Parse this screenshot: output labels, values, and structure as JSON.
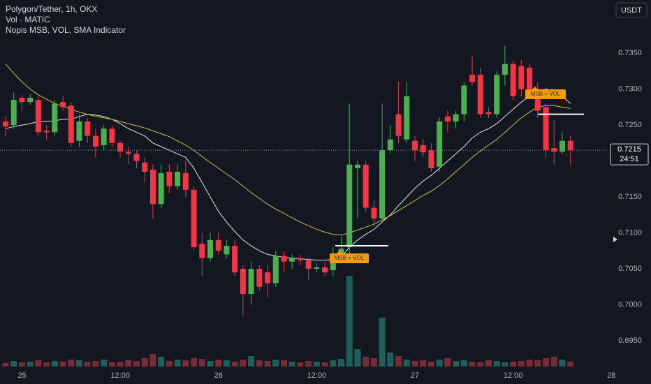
{
  "chart_data": {
    "type": "candlestick",
    "title": "Polygon/Tether, 1h, OKX",
    "subtitles": [
      "Vol · MATIC",
      "Nopis MSB, VOL, SMA Indicator"
    ],
    "currency": "USDT",
    "categories": [
      null,
      null,
      "25",
      null,
      null,
      null,
      null,
      null,
      null,
      null,
      null,
      null,
      null,
      null,
      "12:00",
      null,
      null,
      null,
      null,
      null,
      null,
      null,
      null,
      null,
      null,
      null,
      "26",
      null,
      null,
      null,
      null,
      null,
      null,
      null,
      null,
      null,
      null,
      null,
      "12:00",
      null,
      null,
      null,
      null,
      null,
      null,
      null,
      null,
      null,
      null,
      null,
      "27",
      null,
      null,
      null,
      null,
      null,
      null,
      null,
      null,
      null,
      null,
      null,
      "12:00",
      null,
      null,
      null,
      null,
      null,
      null,
      null,
      null,
      null,
      null,
      null,
      "28"
    ],
    "open": [
      0.7255,
      0.725,
      0.7288,
      0.7282,
      0.7285,
      0.7242,
      0.724,
      0.7282,
      0.7277,
      0.7228,
      0.7255,
      0.7235,
      0.7222,
      0.7245,
      0.7225,
      0.7213,
      0.721,
      0.7198,
      0.7188,
      0.714,
      0.7185,
      0.7165,
      0.7183,
      0.716,
      0.7085,
      0.7065,
      0.709,
      0.707,
      0.7082,
      0.705,
      0.7015,
      0.705,
      0.7045,
      0.703,
      0.7068,
      0.706,
      0.7065,
      0.7062,
      0.705,
      0.7052,
      0.7048,
      0.707,
      0.708,
      0.719,
      0.7195,
      0.7135,
      0.712,
      0.7215,
      0.7265,
      0.723,
      0.7228,
      0.7222,
      0.7215,
      0.7192,
      0.7262,
      0.7255,
      0.7265,
      0.732,
      0.732,
      0.7268,
      0.7265,
      0.732,
      0.7335,
      0.7332,
      0.733,
      0.73,
      0.7275,
      0.7218,
      0.7213,
      0.7228,
      null,
      null,
      null,
      null,
      null
    ],
    "high": [
      0.7262,
      0.7295,
      0.7292,
      0.7293,
      0.729,
      0.725,
      0.7285,
      0.729,
      0.7282,
      0.7265,
      0.726,
      0.7245,
      0.725,
      0.725,
      0.7228,
      0.722,
      0.7215,
      0.7205,
      0.7195,
      0.7195,
      0.7195,
      0.7195,
      0.72,
      0.7165,
      0.71,
      0.71,
      0.71,
      0.709,
      0.709,
      0.7055,
      0.706,
      0.7055,
      0.7055,
      0.7075,
      0.7075,
      0.707,
      0.707,
      0.7065,
      0.7058,
      0.706,
      0.708,
      0.7095,
      0.728,
      0.72,
      0.72,
      0.7145,
      0.728,
      0.725,
      0.731,
      0.731,
      0.7235,
      0.723,
      0.7225,
      0.726,
      0.727,
      0.727,
      0.731,
      0.7345,
      0.733,
      0.7275,
      0.7325,
      0.736,
      0.734,
      0.734,
      0.7335,
      0.731,
      0.728,
      0.7258,
      0.724,
      0.7235,
      null,
      null,
      null,
      null,
      null
    ],
    "low": [
      0.7235,
      0.7245,
      0.727,
      0.7278,
      0.7235,
      0.723,
      0.7235,
      0.727,
      0.722,
      0.722,
      0.7225,
      0.7205,
      0.7215,
      0.722,
      0.7205,
      0.7195,
      0.719,
      0.717,
      0.712,
      0.7135,
      0.7155,
      0.716,
      0.715,
      0.7075,
      0.704,
      0.706,
      0.707,
      0.7065,
      0.704,
      0.6985,
      0.7,
      0.702,
      0.701,
      0.7025,
      0.7045,
      0.705,
      0.7055,
      0.7035,
      0.7045,
      0.704,
      0.704,
      0.706,
      0.707,
      0.712,
      0.713,
      0.711,
      0.7115,
      0.721,
      0.7225,
      0.7225,
      0.72,
      0.7205,
      0.7185,
      0.7185,
      0.724,
      0.7245,
      0.7255,
      0.7305,
      0.726,
      0.726,
      0.726,
      0.7305,
      0.7285,
      0.729,
      0.7295,
      0.726,
      0.7205,
      0.7195,
      0.721,
      0.7195,
      null,
      null,
      null,
      null,
      null
    ],
    "close": [
      0.7248,
      0.7285,
      0.7282,
      0.7288,
      0.724,
      0.724,
      0.728,
      0.7275,
      0.7225,
      0.7255,
      0.7235,
      0.722,
      0.7245,
      0.7225,
      0.7213,
      0.721,
      0.72,
      0.7185,
      0.714,
      0.7183,
      0.7165,
      0.7185,
      0.716,
      0.708,
      0.7065,
      0.709,
      0.7075,
      0.7082,
      0.7045,
      0.7015,
      0.705,
      0.7025,
      0.703,
      0.7068,
      0.706,
      0.7065,
      0.7062,
      0.705,
      0.7052,
      0.7045,
      0.707,
      0.7078,
      0.7195,
      0.7195,
      0.7135,
      0.712,
      0.7215,
      0.723,
      0.7235,
      0.729,
      0.7215,
      0.7212,
      0.719,
      0.7255,
      0.7255,
      0.7265,
      0.7305,
      0.731,
      0.7265,
      0.7265,
      0.732,
      0.7335,
      0.729,
      0.73,
      0.73,
      0.727,
      0.7215,
      0.7213,
      0.7228,
      0.7215,
      null,
      null,
      null,
      null,
      null
    ],
    "up_color": "#4caf50",
    "down_color": "#f23645",
    "volume": {
      "up_color": "#1e5f59",
      "down_color": "#7a2c36",
      "vlim": [
        0,
        140
      ],
      "values": [
        5,
        8,
        6,
        7,
        9,
        6,
        8,
        7,
        10,
        9,
        7,
        8,
        10,
        6,
        7,
        9,
        8,
        12,
        18,
        14,
        8,
        10,
        9,
        12,
        11,
        8,
        10,
        9,
        7,
        10,
        15,
        9,
        8,
        10,
        9,
        7,
        6,
        8,
        7,
        6,
        9,
        11,
        130,
        25,
        14,
        12,
        70,
        20,
        15,
        10,
        8,
        9,
        7,
        10,
        12,
        8,
        9,
        7,
        6,
        9,
        8,
        6,
        7,
        8,
        10,
        9,
        12,
        14,
        10,
        7,
        null,
        null,
        null,
        null,
        null
      ]
    },
    "sma": [
      {
        "color": "#e6e6e6",
        "values": [
          0.7245,
          0.7248,
          0.725,
          0.7252,
          0.7255,
          0.7255,
          0.7256,
          0.7258,
          0.7258,
          0.7262,
          0.7265,
          0.7264,
          0.7262,
          0.7258,
          0.7252,
          0.7245,
          0.724,
          0.7235,
          0.7225,
          0.722,
          0.7215,
          0.721,
          0.7205,
          0.719,
          0.717,
          0.715,
          0.713,
          0.7115,
          0.7102,
          0.709,
          0.7082,
          0.7075,
          0.707,
          0.7068,
          0.7066,
          0.7065,
          0.7064,
          0.7063,
          0.7062,
          0.7062,
          0.7063,
          0.7066,
          0.708,
          0.709,
          0.7098,
          0.7105,
          0.7115,
          0.7125,
          0.7138,
          0.715,
          0.7162,
          0.7172,
          0.718,
          0.719,
          0.72,
          0.721,
          0.722,
          0.7232,
          0.724,
          0.7245,
          0.7252,
          0.7262,
          0.7272,
          0.7282,
          0.729,
          0.7298,
          0.73,
          0.7298,
          0.729,
          0.728,
          null,
          null,
          null,
          null,
          null
        ]
      },
      {
        "color": "#d4c22a",
        "values": [
          0.7335,
          0.7322,
          0.731,
          0.73,
          0.7292,
          0.7286,
          0.728,
          0.7276,
          0.7272,
          0.7268,
          0.7265,
          0.7262,
          0.726,
          0.7258,
          0.7255,
          0.7252,
          0.7249,
          0.7246,
          0.7242,
          0.7238,
          0.7234,
          0.7228,
          0.7222,
          0.7215,
          0.7206,
          0.7198,
          0.719,
          0.7182,
          0.7174,
          0.7165,
          0.7156,
          0.7148,
          0.714,
          0.7133,
          0.7127,
          0.7121,
          0.7115,
          0.711,
          0.7105,
          0.7101,
          0.7098,
          0.7097,
          0.71,
          0.7104,
          0.7108,
          0.7112,
          0.7118,
          0.7124,
          0.7131,
          0.7138,
          0.7145,
          0.7152,
          0.7158,
          0.7166,
          0.7175,
          0.7185,
          0.7195,
          0.7205,
          0.7214,
          0.7222,
          0.723,
          0.724,
          0.725,
          0.726,
          0.7268,
          0.7275,
          0.7277,
          0.7277,
          0.7275,
          0.7273,
          null,
          null,
          null,
          null,
          null
        ]
      }
    ],
    "msb": [
      {
        "label": "MSB + VOL",
        "level": 0.7082,
        "color": "#f59c0b"
      },
      {
        "label": "MSB + VOL",
        "level": 0.7265,
        "color": "#f59c0b"
      }
    ],
    "last_price": {
      "value": 0.7215,
      "countdown": "24:51"
    },
    "ylim": [
      0.6914,
      0.7424
    ],
    "yticks": [
      {
        "value": 0.695,
        "label": "0.6950"
      },
      {
        "value": 0.7,
        "label": "0.7000"
      },
      {
        "value": 0.705,
        "label": "0.7050"
      },
      {
        "value": 0.71,
        "label": "0.7100"
      },
      {
        "value": 0.715,
        "label": "0.7150"
      },
      {
        "value": 0.725,
        "label": "0.7250"
      },
      {
        "value": 0.73,
        "label": "0.7300"
      },
      {
        "value": 0.735,
        "label": "0.7350"
      }
    ],
    "grid": false
  }
}
